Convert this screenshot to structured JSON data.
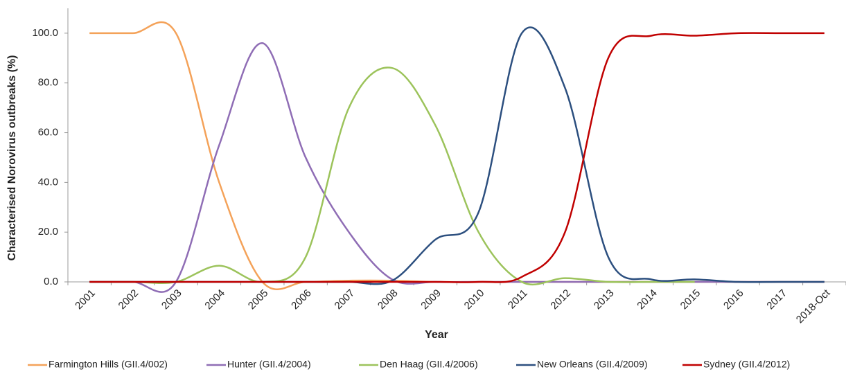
{
  "chart_data": {
    "type": "line",
    "y_label": "Characterised Norovirus outbreaks (%)",
    "x_label": "Year",
    "categories": [
      "2001",
      "2002",
      "2003",
      "2004",
      "2005",
      "2006",
      "2007",
      "2008",
      "2009",
      "2010",
      "2011",
      "2012",
      "2013",
      "2014",
      "2015",
      "2016",
      "2017",
      "2018-Oct"
    ],
    "ylim": [
      0,
      110
    ],
    "yticks": [
      {
        "value": 0,
        "label": "0.0"
      },
      {
        "value": 20,
        "label": "20.0"
      },
      {
        "value": 40,
        "label": "40.0"
      },
      {
        "value": 60,
        "label": "60.0"
      },
      {
        "value": 80,
        "label": "80.0"
      },
      {
        "value": 100,
        "label": "100.0"
      }
    ],
    "series": [
      {
        "name": "Farmington Hills (GII.4/002)",
        "color": "#f4a259",
        "values": [
          100,
          100,
          100,
          40,
          0,
          0,
          0.5,
          0.5,
          0,
          0,
          0,
          0,
          0,
          0,
          0,
          0,
          0,
          0
        ]
      },
      {
        "name": "Hunter (GII.4/2004)",
        "color": "#8f6db5",
        "values": [
          0,
          0,
          0,
          55,
          96,
          50,
          20,
          1,
          0,
          0,
          0,
          0,
          0,
          0,
          0,
          0,
          0,
          0
        ]
      },
      {
        "name": "Den Haag (GII.4/2006)",
        "color": "#9cc35b",
        "values": [
          0,
          0,
          0,
          6.5,
          0,
          10,
          70,
          86,
          63,
          20,
          0,
          1.5,
          0,
          0,
          0,
          null,
          null,
          null
        ]
      },
      {
        "name": "New Orleans (GII.4/2009)",
        "color": "#2c4f7f",
        "values": [
          0,
          0,
          0,
          0,
          0,
          0,
          0,
          0.5,
          17,
          28,
          100,
          78,
          10,
          1,
          1,
          0,
          0,
          0
        ]
      },
      {
        "name": "Sydney (GII.4/2012)",
        "color": "#c00000",
        "values": [
          0,
          0,
          0,
          0,
          0,
          0,
          0,
          0,
          0,
          0,
          2,
          20,
          90,
          99,
          99,
          100,
          100,
          100
        ]
      }
    ]
  }
}
